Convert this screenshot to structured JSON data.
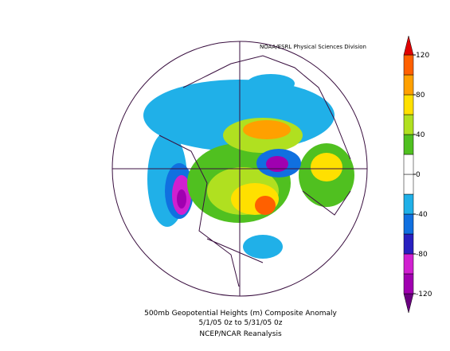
{
  "credit": "NOAA/ESRL Physical Sciences Division",
  "title": "500mb Geopotential Heights (m)   Composite Anomaly",
  "subtitle": "5/1/05 0z  to 5/31/05 0z",
  "source": "NCEP/NCAR Reanalysis",
  "colorbar": {
    "ticks": [
      120,
      80,
      40,
      0,
      -40,
      -80,
      -120
    ],
    "bounds": [
      -120,
      -100,
      -80,
      -60,
      -40,
      -20,
      0,
      20,
      40,
      60,
      80,
      100,
      120
    ],
    "colors": [
      "#6a0080",
      "#a000b0",
      "#d020d0",
      "#2820c0",
      "#1070e0",
      "#20b0e8",
      "#ffffff",
      "#ffffff",
      "#50c020",
      "#b0e020",
      "#ffe000",
      "#ffa000",
      "#ff6000",
      "#e00000"
    ]
  }
}
